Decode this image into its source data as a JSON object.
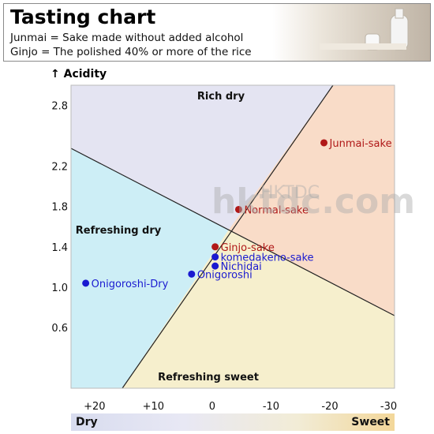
{
  "header": {
    "title": "Tasting chart",
    "definitions": [
      "Junmai = Sake made without added alcohol",
      "Ginjo = The polished 40% or more of the rice"
    ]
  },
  "watermark": {
    "line1": "HKTDC",
    "line2": "hktdc.com"
  },
  "chart_data": {
    "type": "scatter",
    "title": "Tasting chart",
    "xlabel": "",
    "ylabel": "↑ Acidity",
    "x_axis_left_label": "Dry",
    "x_axis_right_label": "Sweet",
    "xlim": [
      24,
      -31
    ],
    "ylim": [
      0.0,
      3.0
    ],
    "x_ticks": [
      20,
      10,
      0,
      -10,
      -20,
      -30
    ],
    "x_tick_labels": [
      "+20",
      "+10",
      "0",
      "-10",
      "-20",
      "-30"
    ],
    "y_ticks": [
      0.6,
      1.0,
      1.4,
      1.8,
      2.2,
      2.8
    ],
    "y_tick_labels": [
      "0.6",
      "1.0",
      "1.4",
      "1.8",
      "2.2",
      "2.8"
    ],
    "grid": false,
    "regions": [
      {
        "name": "Rich dry",
        "color": "#e4e4f2"
      },
      {
        "name": "Refreshing dry",
        "color": "#cdeef6"
      },
      {
        "name": "Refreshing sweet",
        "color": "#f6efcd"
      },
      {
        "name": "",
        "color": "#f9dcc8"
      }
    ],
    "points": [
      {
        "name": "Junmai-sake",
        "x": -19,
        "y": 2.43,
        "color": "#b01818"
      },
      {
        "name": "Normal-sake",
        "x": -4.5,
        "y": 1.77,
        "color": "#b01818"
      },
      {
        "name": "Ginjo-sake",
        "x": -0.5,
        "y": 1.4,
        "color": "#b01818"
      },
      {
        "name": "komedakeno-sake",
        "x": -0.5,
        "y": 1.3,
        "color": "#1a1ad0"
      },
      {
        "name": "Nichidai",
        "x": -0.5,
        "y": 1.21,
        "color": "#1a1ad0"
      },
      {
        "name": "Onigoroshi",
        "x": 3.5,
        "y": 1.13,
        "color": "#1a1ad0"
      },
      {
        "name": "Onigoroshi-Dry",
        "x": 21.5,
        "y": 1.04,
        "color": "#1a1ad0"
      }
    ]
  }
}
